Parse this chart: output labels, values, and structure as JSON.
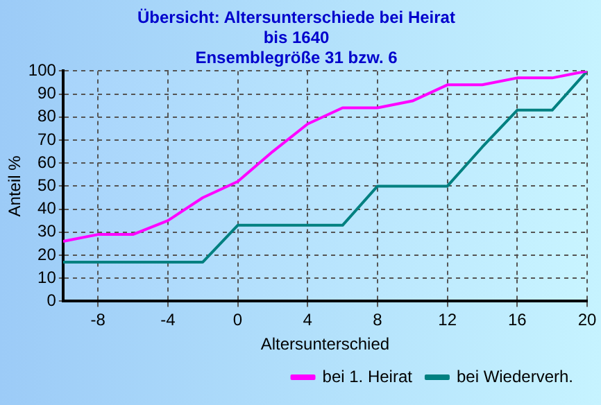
{
  "chart_data": {
    "type": "line",
    "title": [
      "Übersicht: Altersunterschiede bei Heirat",
      "bis 1640",
      "Ensemblegröße 31 bzw. 6"
    ],
    "xlabel": "Altersunterschied",
    "ylabel": "Anteil %",
    "x": [
      -10,
      -8,
      -6,
      -4,
      -2,
      0,
      2,
      4,
      6,
      8,
      10,
      12,
      14,
      16,
      18,
      20
    ],
    "series": [
      {
        "name": "bei 1. Heirat",
        "color": "#ff00ff",
        "values": [
          26,
          29,
          29,
          35,
          45,
          52,
          65,
          77,
          84,
          84,
          87,
          94,
          94,
          97,
          97,
          100
        ]
      },
      {
        "name": "bei Wiederverh.",
        "color": "#008080",
        "values": [
          17,
          17,
          17,
          17,
          17,
          33,
          33,
          33,
          33,
          50,
          50,
          50,
          67,
          83,
          83,
          100
        ]
      }
    ],
    "xlim": [
      -10,
      20
    ],
    "xticks": [
      -8,
      -4,
      0,
      4,
      8,
      12,
      16,
      20
    ],
    "ylim": [
      0,
      100
    ],
    "yticks": [
      0,
      10,
      20,
      30,
      40,
      50,
      60,
      70,
      80,
      90,
      100
    ],
    "grid": true,
    "legend": "bottom",
    "marker": "none",
    "line_style": "solid"
  }
}
